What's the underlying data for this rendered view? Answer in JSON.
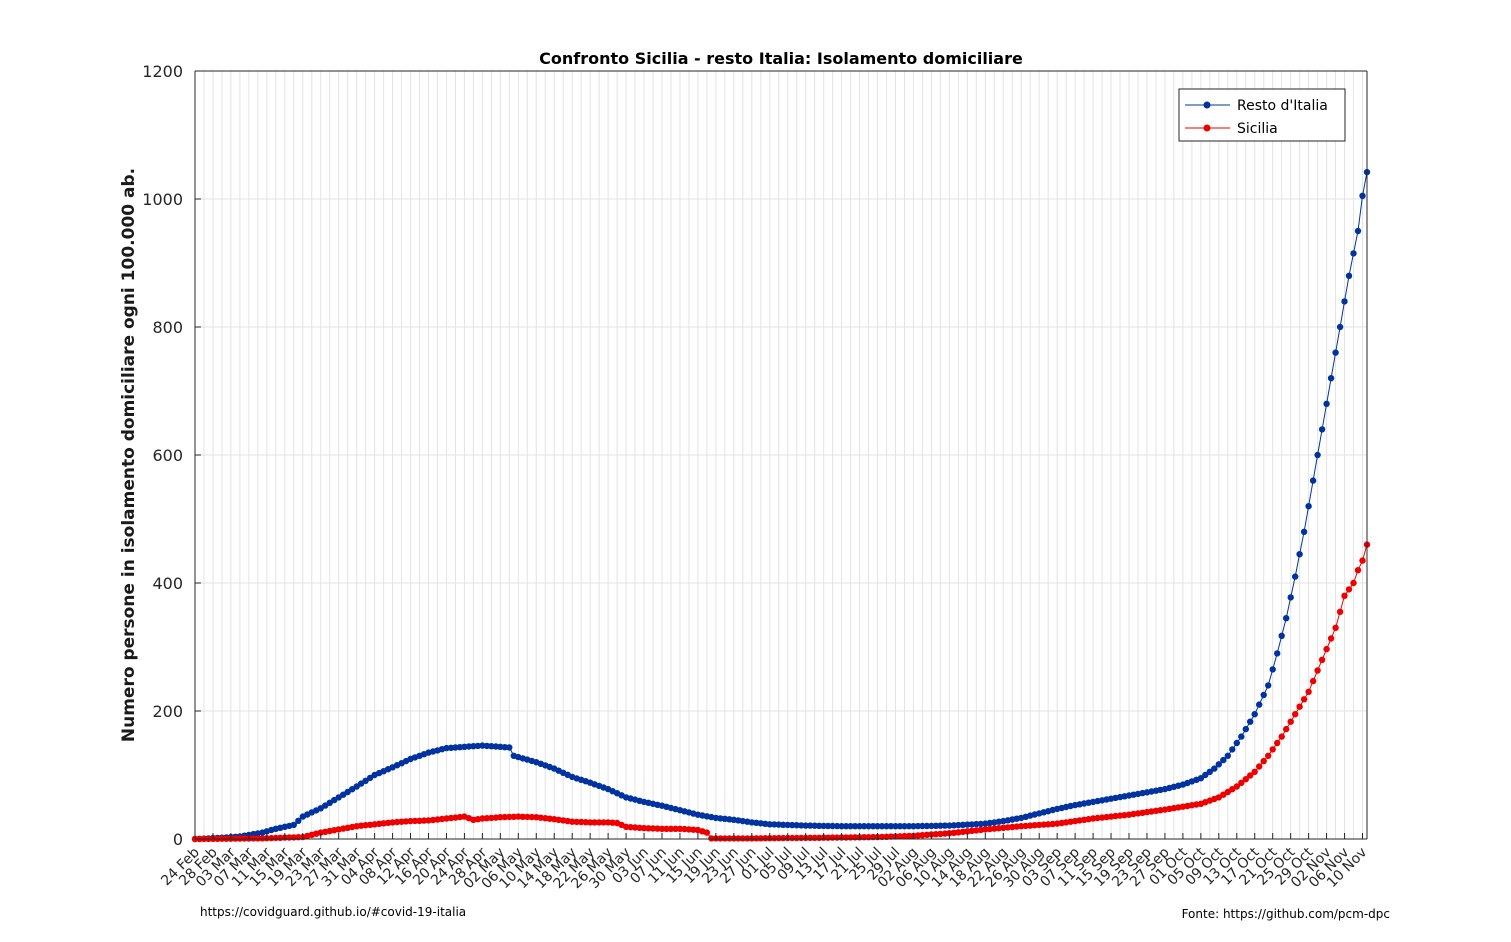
{
  "sources": {
    "left": "https://covidguard.github.io/#covid-19-italia",
    "right": "Fonte: https://github.com/pcm-dpc"
  },
  "colors": {
    "resto": "#0033a0",
    "sicilia": "#ee0000",
    "grid": "#e3e3e3",
    "axis": "#262626"
  },
  "chart_data": {
    "type": "line",
    "title": "Confronto Sicilia - resto Italia: Isolamento domiciliare",
    "xlabel": "",
    "ylabel": "Numero persone in isolamento domiciliare ogni 100.000 ab.",
    "start_date": "2020-02-24",
    "end_date": "2020-11-11",
    "ylim": [
      0,
      1200
    ],
    "yticks": [
      0,
      200,
      400,
      600,
      800,
      1000,
      1200
    ],
    "xticks": [
      "24 Feb",
      "28 Feb",
      "03 Mar",
      "07 Mar",
      "11 Mar",
      "15 Mar",
      "19 Mar",
      "23 Mar",
      "27 Mar",
      "31 Mar",
      "04 Apr",
      "08 Apr",
      "12 Apr",
      "16 Apr",
      "20 Apr",
      "24 Apr",
      "28 Apr",
      "02 May",
      "06 May",
      "10 May",
      "14 May",
      "18 May",
      "22 May",
      "26 May",
      "30 May",
      "03 Jun",
      "07 Jun",
      "11 Jun",
      "15 Jun",
      "19 Jun",
      "23 Jun",
      "27 Jun",
      "01 Jul",
      "05 Jul",
      "09 Jul",
      "13 Jul",
      "17 Jul",
      "21 Jul",
      "25 Jul",
      "29 Jul",
      "02 Aug",
      "06 Aug",
      "10 Aug",
      "14 Aug",
      "18 Aug",
      "22 Aug",
      "26 Aug",
      "30 Aug",
      "03 Sep",
      "07 Sep",
      "11 Sep",
      "15 Sep",
      "19 Sep",
      "23 Sep",
      "27 Sep",
      "01 Oct",
      "05 Oct",
      "09 Oct",
      "13 Oct",
      "17 Oct",
      "21 Oct",
      "25 Oct",
      "29 Oct",
      "02 Nov",
      "06 Nov",
      "10 Nov"
    ],
    "grid": true,
    "legend_position": "top-right",
    "series": [
      {
        "name": "Resto d'Italia",
        "color": "#0033a0",
        "points": [
          [
            "2020-02-24",
            0
          ],
          [
            "2020-03-01",
            2
          ],
          [
            "2020-03-05",
            4
          ],
          [
            "2020-03-10",
            10
          ],
          [
            "2020-03-13",
            16
          ],
          [
            "2020-03-17",
            22
          ],
          [
            "2020-03-19",
            35
          ],
          [
            "2020-03-23",
            48
          ],
          [
            "2020-03-27",
            65
          ],
          [
            "2020-03-31",
            82
          ],
          [
            "2020-04-04",
            100
          ],
          [
            "2020-04-08",
            112
          ],
          [
            "2020-04-12",
            125
          ],
          [
            "2020-04-16",
            135
          ],
          [
            "2020-04-20",
            142
          ],
          [
            "2020-04-24",
            144
          ],
          [
            "2020-04-28",
            146
          ],
          [
            "2020-05-02",
            144
          ],
          [
            "2020-05-04",
            143
          ],
          [
            "2020-05-05",
            130
          ],
          [
            "2020-05-10",
            120
          ],
          [
            "2020-05-14",
            110
          ],
          [
            "2020-05-18",
            97
          ],
          [
            "2020-05-22",
            88
          ],
          [
            "2020-05-26",
            78
          ],
          [
            "2020-05-30",
            65
          ],
          [
            "2020-06-03",
            58
          ],
          [
            "2020-06-07",
            52
          ],
          [
            "2020-06-11",
            45
          ],
          [
            "2020-06-15",
            38
          ],
          [
            "2020-06-19",
            33
          ],
          [
            "2020-06-23",
            30
          ],
          [
            "2020-06-27",
            26
          ],
          [
            "2020-07-01",
            23
          ],
          [
            "2020-07-09",
            21
          ],
          [
            "2020-07-17",
            20
          ],
          [
            "2020-07-25",
            20
          ],
          [
            "2020-08-02",
            20
          ],
          [
            "2020-08-10",
            21
          ],
          [
            "2020-08-18",
            24
          ],
          [
            "2020-08-22",
            28
          ],
          [
            "2020-08-26",
            33
          ],
          [
            "2020-08-30",
            40
          ],
          [
            "2020-09-03",
            47
          ],
          [
            "2020-09-07",
            53
          ],
          [
            "2020-09-11",
            58
          ],
          [
            "2020-09-15",
            63
          ],
          [
            "2020-09-19",
            68
          ],
          [
            "2020-09-23",
            73
          ],
          [
            "2020-09-27",
            78
          ],
          [
            "2020-10-01",
            85
          ],
          [
            "2020-10-05",
            95
          ],
          [
            "2020-10-08",
            110
          ],
          [
            "2020-10-11",
            130
          ],
          [
            "2020-10-14",
            160
          ],
          [
            "2020-10-17",
            195
          ],
          [
            "2020-10-20",
            240
          ],
          [
            "2020-10-22",
            290
          ],
          [
            "2020-10-24",
            345
          ],
          [
            "2020-10-26",
            410
          ],
          [
            "2020-10-28",
            480
          ],
          [
            "2020-10-30",
            560
          ],
          [
            "2020-11-01",
            640
          ],
          [
            "2020-11-03",
            720
          ],
          [
            "2020-11-05",
            800
          ],
          [
            "2020-11-07",
            880
          ],
          [
            "2020-11-09",
            950
          ],
          [
            "2020-11-10",
            1005
          ],
          [
            "2020-11-11",
            1042
          ]
        ]
      },
      {
        "name": "Sicilia",
        "color": "#ee0000",
        "points": [
          [
            "2020-02-24",
            0
          ],
          [
            "2020-03-10",
            1
          ],
          [
            "2020-03-19",
            3
          ],
          [
            "2020-03-23",
            10
          ],
          [
            "2020-03-27",
            15
          ],
          [
            "2020-03-31",
            20
          ],
          [
            "2020-04-04",
            23
          ],
          [
            "2020-04-08",
            26
          ],
          [
            "2020-04-12",
            28
          ],
          [
            "2020-04-16",
            29
          ],
          [
            "2020-04-20",
            32
          ],
          [
            "2020-04-24",
            35
          ],
          [
            "2020-04-26",
            30
          ],
          [
            "2020-04-28",
            32
          ],
          [
            "2020-05-02",
            34
          ],
          [
            "2020-05-06",
            35
          ],
          [
            "2020-05-10",
            34
          ],
          [
            "2020-05-14",
            31
          ],
          [
            "2020-05-18",
            27
          ],
          [
            "2020-05-22",
            26
          ],
          [
            "2020-05-26",
            26
          ],
          [
            "2020-05-28",
            25
          ],
          [
            "2020-05-30",
            19
          ],
          [
            "2020-06-03",
            17
          ],
          [
            "2020-06-07",
            16
          ],
          [
            "2020-06-11",
            16
          ],
          [
            "2020-06-15",
            14
          ],
          [
            "2020-06-17",
            10
          ],
          [
            "2020-06-18",
            1
          ],
          [
            "2020-06-27",
            1
          ],
          [
            "2020-07-13",
            2
          ],
          [
            "2020-07-25",
            3
          ],
          [
            "2020-08-02",
            5
          ],
          [
            "2020-08-10",
            9
          ],
          [
            "2020-08-18",
            15
          ],
          [
            "2020-08-26",
            20
          ],
          [
            "2020-09-03",
            24
          ],
          [
            "2020-09-11",
            32
          ],
          [
            "2020-09-19",
            38
          ],
          [
            "2020-09-27",
            46
          ],
          [
            "2020-10-05",
            55
          ],
          [
            "2020-10-09",
            65
          ],
          [
            "2020-10-13",
            82
          ],
          [
            "2020-10-17",
            105
          ],
          [
            "2020-10-20",
            130
          ],
          [
            "2020-10-23",
            160
          ],
          [
            "2020-10-26",
            195
          ],
          [
            "2020-10-29",
            230
          ],
          [
            "2020-11-01",
            280
          ],
          [
            "2020-11-04",
            330
          ],
          [
            "2020-11-06",
            380
          ],
          [
            "2020-11-08",
            400
          ],
          [
            "2020-11-09",
            420
          ],
          [
            "2020-11-10",
            435
          ],
          [
            "2020-11-11",
            460
          ]
        ]
      }
    ]
  }
}
